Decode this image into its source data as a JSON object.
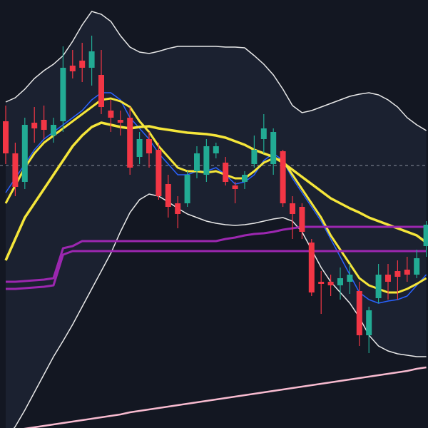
{
  "chart_data": {
    "type": "candlestick",
    "ylim": [
      0,
      600
    ],
    "up_color": "#22ab94",
    "down_color": "#f23645",
    "open": [
      430,
      385,
      345,
      428,
      432,
      410,
      430,
      508,
      515,
      505,
      495,
      445,
      432,
      435,
      380,
      405,
      390,
      342,
      315,
      315,
      360,
      355,
      385,
      372,
      340,
      345,
      370,
      405,
      370,
      388,
      315,
      310,
      260,
      205,
      205,
      200,
      205,
      192,
      130,
      182,
      215,
      220,
      222,
      215,
      255
    ],
    "high": [
      452,
      400,
      435,
      450,
      452,
      435,
      535,
      530,
      540,
      550,
      530,
      460,
      445,
      450,
      415,
      415,
      400,
      355,
      325,
      360,
      395,
      405,
      400,
      380,
      345,
      360,
      410,
      440,
      420,
      390,
      325,
      315,
      265,
      220,
      215,
      225,
      230,
      205,
      170,
      230,
      230,
      235,
      240,
      250,
      290
    ],
    "low": [
      370,
      325,
      335,
      400,
      405,
      400,
      415,
      490,
      485,
      480,
      440,
      415,
      410,
      355,
      370,
      365,
      320,
      295,
      280,
      310,
      350,
      345,
      378,
      340,
      315,
      335,
      365,
      385,
      355,
      310,
      265,
      265,
      185,
      160,
      185,
      180,
      188,
      115,
      105,
      175,
      180,
      180,
      205,
      210,
      240
    ],
    "close": [
      385,
      338,
      425,
      420,
      418,
      425,
      505,
      500,
      505,
      528,
      450,
      435,
      428,
      365,
      405,
      385,
      325,
      310,
      300,
      355,
      385,
      395,
      395,
      345,
      335,
      355,
      390,
      420,
      415,
      315,
      300,
      275,
      190,
      202,
      200,
      210,
      215,
      130,
      165,
      215,
      205,
      212,
      215,
      238,
      285
    ],
    "band": {
      "fill": "#1b2130",
      "color": "#e8e8e8",
      "upper": [
        457,
        463,
        475,
        490,
        501,
        510,
        522,
        542,
        565,
        584,
        580,
        570,
        550,
        534,
        527,
        525,
        528,
        532,
        535,
        535,
        535,
        535,
        535,
        534,
        534,
        533,
        522,
        510,
        495,
        475,
        452,
        442,
        445,
        450,
        455,
        460,
        465,
        468,
        470,
        467,
        460,
        450,
        435,
        425,
        417
      ],
      "lower": [
        -15,
        2,
        25,
        50,
        75,
        100,
        122,
        145,
        170,
        195,
        220,
        245,
        275,
        302,
        320,
        328,
        325,
        317,
        308,
        300,
        295,
        290,
        287,
        285,
        284,
        285,
        287,
        290,
        293,
        295,
        290,
        275,
        250,
        225,
        205,
        190,
        175,
        155,
        130,
        115,
        108,
        104,
        102,
        100,
        100
      ]
    },
    "overlays": [
      {
        "color": "#2962ff",
        "width": 1.5,
        "values": [
          330,
          350,
          370,
          390,
          405,
          415,
          425,
          435,
          445,
          460,
          470,
          470,
          460,
          435,
          420,
          405,
          385,
          370,
          355,
          355,
          360,
          360,
          365,
          355,
          342,
          345,
          355,
          375,
          385,
          375,
          350,
          330,
          310,
          290,
          265,
          240,
          215,
          190,
          180,
          175,
          178,
          180,
          185,
          200,
          215
        ]
      },
      {
        "color": "#f5e63a",
        "width": 3,
        "values": [
          315,
          340,
          365,
          385,
          400,
          410,
          420,
          430,
          440,
          450,
          460,
          462,
          458,
          450,
          430,
          415,
          395,
          380,
          365,
          360,
          360,
          358,
          360,
          355,
          350,
          350,
          360,
          372,
          378,
          375,
          355,
          335,
          315,
          295,
          270,
          250,
          230,
          210,
          200,
          195,
          190,
          190,
          195,
          202,
          210
        ]
      },
      {
        "color": "#f5e63a",
        "width": 3.5,
        "values": [
          235,
          265,
          295,
          315,
          335,
          355,
          375,
          395,
          410,
          422,
          428,
          425,
          422,
          420,
          422,
          423,
          420,
          418,
          416,
          414,
          413,
          412,
          410,
          407,
          402,
          397,
          390,
          385,
          380,
          372,
          362,
          352,
          342,
          332,
          322,
          315,
          308,
          302,
          295,
          290,
          285,
          280,
          275,
          270,
          260
        ]
      },
      {
        "color": "#9c27b0",
        "width": 3,
        "values": [
          205,
          205,
          206,
          207,
          208,
          210,
          252,
          255,
          262,
          262,
          262,
          262,
          262,
          262,
          262,
          262,
          262,
          262,
          262,
          262,
          262,
          262,
          262,
          265,
          267,
          270,
          272,
          273,
          275,
          278,
          280,
          282,
          282,
          282,
          282,
          282,
          282,
          282,
          282,
          282,
          282,
          282,
          282,
          282,
          282
        ]
      },
      {
        "color": "#9c27b0",
        "width": 3,
        "values": [
          195,
          195,
          196,
          197,
          198,
          200,
          243,
          248,
          248,
          248,
          248,
          248,
          248,
          248,
          248,
          248,
          248,
          248,
          248,
          248,
          248,
          248,
          248,
          248,
          248,
          248,
          248,
          248,
          248,
          248,
          248,
          248,
          248,
          248,
          248,
          248,
          248,
          248,
          248,
          248,
          248,
          248,
          248,
          248,
          248
        ]
      },
      {
        "color": "#f8bbd0",
        "width": 2.5,
        "values": [
          -5,
          -3,
          -1,
          1,
          3,
          5,
          7,
          9,
          11,
          13,
          15,
          17,
          19,
          22,
          24,
          26,
          28,
          30,
          32,
          34,
          36,
          38,
          40,
          42,
          44,
          46,
          48,
          50,
          52,
          54,
          56,
          58,
          60,
          62,
          64,
          66,
          68,
          70,
          72,
          74,
          76,
          78,
          80,
          83,
          85
        ]
      }
    ],
    "price_line": 368,
    "price_line_color": "#8a8f9c"
  }
}
